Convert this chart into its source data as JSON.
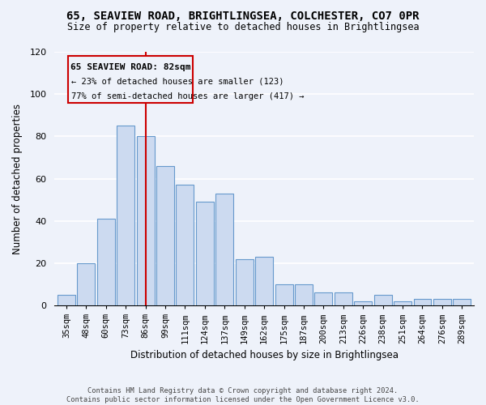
{
  "title_line1": "65, SEAVIEW ROAD, BRIGHTLINGSEA, COLCHESTER, CO7 0PR",
  "title_line2": "Size of property relative to detached houses in Brightlingsea",
  "xlabel": "Distribution of detached houses by size in Brightlingsea",
  "ylabel": "Number of detached properties",
  "categories": [
    "35sqm",
    "48sqm",
    "60sqm",
    "73sqm",
    "86sqm",
    "99sqm",
    "111sqm",
    "124sqm",
    "137sqm",
    "149sqm",
    "162sqm",
    "175sqm",
    "187sqm",
    "200sqm",
    "213sqm",
    "226sqm",
    "238sqm",
    "251sqm",
    "264sqm",
    "276sqm",
    "289sqm"
  ],
  "values": [
    5,
    20,
    41,
    85,
    80,
    66,
    57,
    49,
    53,
    22,
    23,
    10,
    10,
    6,
    6,
    2,
    5,
    2,
    3,
    3,
    3
  ],
  "bar_color": "#ccdaf0",
  "bar_edge_color": "#6699cc",
  "vline_x": 4,
  "vline_color": "#cc0000",
  "annotation_title": "65 SEAVIEW ROAD: 82sqm",
  "annotation_line1": "← 23% of detached houses are smaller (123)",
  "annotation_line2": "77% of semi-detached houses are larger (417) →",
  "annotation_box_color": "#cc0000",
  "ylim": [
    0,
    120
  ],
  "yticks": [
    0,
    20,
    40,
    60,
    80,
    100,
    120
  ],
  "footer_line1": "Contains HM Land Registry data © Crown copyright and database right 2024.",
  "footer_line2": "Contains public sector information licensed under the Open Government Licence v3.0.",
  "bg_color": "#eef2fa"
}
